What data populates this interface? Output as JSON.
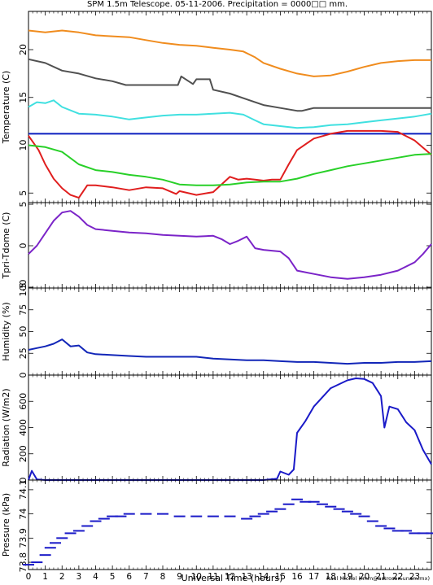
{
  "title": "SPM 1.5m Telescope. 05-11-2006. Precipitation = 0000□□ mm.",
  "xlabel": "Universal Time (hours)",
  "credit": "Raul Michel (rmm@astrosen.unam.mx)",
  "chart_data": [
    {
      "type": "line",
      "ylabel": "Temperature (C)",
      "ylim": [
        4,
        24
      ],
      "yticks": [
        5,
        10,
        15,
        20
      ],
      "xlim": [
        0,
        24
      ],
      "series": [
        {
          "color": "#f08c1e",
          "x": [
            0,
            1,
            2,
            3,
            4,
            5,
            6,
            7,
            8,
            9,
            10,
            11,
            12,
            12.8,
            13.5,
            14,
            15,
            16,
            17,
            18,
            19,
            20,
            21,
            22,
            23,
            24
          ],
          "values": [
            22,
            21.8,
            22,
            21.8,
            21.5,
            21.4,
            21.3,
            21,
            20.7,
            20.5,
            20.4,
            20.2,
            20,
            19.8,
            19.2,
            18.6,
            18,
            17.5,
            17.2,
            17.3,
            17.7,
            18.2,
            18.6,
            18.8,
            18.9,
            18.9
          ]
        },
        {
          "color": "#505050",
          "x": [
            0,
            1,
            2,
            3,
            4,
            5,
            5.8,
            6,
            7,
            8,
            8.9,
            9.1,
            9.8,
            10,
            10.8,
            11,
            12,
            13,
            14,
            15,
            16,
            16.3,
            17,
            18,
            19,
            20,
            21,
            22,
            23,
            24
          ],
          "values": [
            19,
            18.6,
            17.8,
            17.5,
            17,
            16.7,
            16.3,
            16.3,
            16.3,
            16.3,
            16.3,
            17.2,
            16.4,
            16.9,
            16.9,
            15.8,
            15.4,
            14.8,
            14.2,
            13.9,
            13.6,
            13.6,
            13.9,
            13.9,
            13.9,
            13.9,
            13.9,
            13.9,
            13.9,
            13.9
          ]
        },
        {
          "color": "#40e0e0",
          "x": [
            0,
            0.5,
            1,
            1.5,
            2,
            3,
            4,
            5,
            6,
            7,
            8,
            9,
            10,
            11,
            12,
            12.8,
            13.5,
            14,
            15,
            16,
            17,
            18,
            19,
            20,
            21,
            22,
            23,
            24
          ],
          "values": [
            14,
            14.5,
            14.4,
            14.7,
            14,
            13.3,
            13.2,
            13,
            12.7,
            12.9,
            13.1,
            13.2,
            13.2,
            13.3,
            13.4,
            13.2,
            12.6,
            12.2,
            12,
            11.8,
            11.9,
            12.1,
            12.2,
            12.4,
            12.6,
            12.8,
            13,
            13.3
          ]
        },
        {
          "color": "#0b1fbf",
          "x": [
            0,
            24
          ],
          "values": [
            11.2,
            11.2
          ]
        },
        {
          "color": "#e01e1e",
          "x": [
            0,
            0.6,
            1,
            1.5,
            2,
            2.5,
            3,
            3.5,
            4,
            5,
            6,
            7,
            8,
            8.8,
            9,
            10,
            11,
            12,
            12.5,
            13,
            13.5,
            14,
            14.5,
            15,
            15.5,
            16,
            17,
            18,
            19,
            20,
            21,
            22,
            23,
            24
          ],
          "values": [
            11,
            9.5,
            8,
            6.5,
            5.5,
            4.8,
            4.5,
            5.8,
            5.8,
            5.6,
            5.3,
            5.6,
            5.5,
            4.9,
            5.2,
            4.8,
            5.1,
            6.7,
            6.4,
            6.5,
            6.4,
            6.3,
            6.4,
            6.4,
            8,
            9.5,
            10.7,
            11.2,
            11.5,
            11.5,
            11.5,
            11.4,
            10.5,
            9
          ]
        },
        {
          "color": "#28d028",
          "x": [
            0,
            1,
            2,
            3,
            4,
            5,
            6,
            7,
            8,
            9,
            10,
            11,
            12,
            13,
            14,
            15,
            16,
            17,
            18,
            19,
            20,
            21,
            22,
            23,
            24
          ],
          "values": [
            10,
            9.8,
            9.3,
            8,
            7.4,
            7.2,
            6.9,
            6.7,
            6.4,
            5.9,
            5.8,
            5.8,
            5.9,
            6.1,
            6.2,
            6.2,
            6.5,
            7,
            7.4,
            7.8,
            8.1,
            8.4,
            8.7,
            9,
            9.1
          ]
        }
      ]
    },
    {
      "type": "line",
      "ylabel": "Tpri-Tdome (C)",
      "ylim": [
        -5.1,
        5.2
      ],
      "yticks": [
        -5,
        0,
        5
      ],
      "xlim": [
        0,
        24
      ],
      "series": [
        {
          "color": "#7b24c8",
          "x": [
            0,
            0.5,
            1,
            1.5,
            2,
            2.5,
            3,
            3.5,
            4,
            5,
            6,
            7,
            8,
            9,
            10,
            11,
            11.5,
            12,
            12.5,
            13,
            13.5,
            14,
            15,
            15.5,
            16,
            17,
            18,
            19,
            20,
            21,
            22,
            23,
            23.5,
            24
          ],
          "values": [
            -1,
            0,
            1.5,
            3,
            4,
            4.2,
            3.5,
            2.5,
            2,
            1.8,
            1.6,
            1.5,
            1.3,
            1.2,
            1.1,
            1.2,
            0.8,
            0.2,
            0.6,
            1.1,
            -0.3,
            -0.5,
            -0.7,
            -1.5,
            -3,
            -3.4,
            -3.8,
            -4,
            -3.8,
            -3.5,
            -3,
            -2,
            -1,
            0.2
          ]
        }
      ]
    },
    {
      "type": "line",
      "ylabel": "Humidity (%)",
      "ylim": [
        0,
        100
      ],
      "yticks": [
        0,
        25,
        50,
        75,
        100
      ],
      "xlim": [
        0,
        24
      ],
      "series": [
        {
          "color": "#1226b8",
          "x": [
            0,
            0.5,
            1,
            1.5,
            2,
            2.5,
            3,
            3.5,
            4,
            5,
            6,
            7,
            8,
            9,
            10,
            11,
            12,
            13,
            14,
            15,
            16,
            17,
            18,
            19,
            20,
            21,
            22,
            23,
            24
          ],
          "values": [
            29,
            31,
            33,
            36,
            41,
            33,
            34,
            26,
            24,
            23,
            22,
            21,
            21,
            21,
            21,
            19,
            18,
            17,
            17,
            16,
            15,
            15,
            14,
            13,
            14,
            14,
            15,
            15,
            16
          ]
        }
      ]
    },
    {
      "type": "line",
      "ylabel": "Radiation (W/m2)",
      "ylim": [
        0,
        800
      ],
      "yticks": [
        0,
        200,
        400,
        600
      ],
      "xlim": [
        0,
        24
      ],
      "series": [
        {
          "color": "#1a1ac8",
          "x": [
            0,
            0.2,
            0.5,
            1,
            2,
            3,
            4,
            5,
            6,
            7,
            8,
            9,
            10,
            11,
            12,
            13,
            14,
            14.8,
            15,
            15.5,
            15.8,
            16,
            16.5,
            17,
            18,
            19,
            19.5,
            20,
            20.5,
            21,
            21.2,
            21.5,
            22,
            22.5,
            23,
            23.5,
            24
          ],
          "values": [
            0,
            70,
            5,
            0,
            0,
            0,
            0,
            0,
            0,
            0,
            0,
            0,
            0,
            0,
            0,
            0,
            0,
            10,
            65,
            40,
            80,
            360,
            450,
            560,
            700,
            760,
            775,
            770,
            740,
            640,
            400,
            560,
            540,
            440,
            380,
            230,
            120
          ]
        }
      ]
    },
    {
      "type": "scatter",
      "ylabel": "Pressure (kPa)",
      "ylim": [
        73.77,
        74.14
      ],
      "yticks": [
        73.8,
        73.9,
        74,
        74.1
      ],
      "yticklabels": [
        "73.8",
        "73.9",
        "74",
        "74.1"
      ],
      "xlim": [
        0,
        24
      ],
      "series": [
        {
          "color": "#1a1ac8",
          "x": [
            0,
            0.5,
            1,
            1.3,
            1.6,
            2,
            2.5,
            3,
            3.5,
            4,
            4.5,
            5,
            5.5,
            6,
            7,
            8,
            9,
            10,
            11,
            12,
            13,
            13.5,
            14,
            14.5,
            15,
            15.5,
            16,
            16.5,
            17,
            17.5,
            18,
            18.5,
            19,
            19.5,
            20,
            20.5,
            21,
            21.5,
            22,
            22.5,
            23,
            23.5,
            24
          ],
          "values": [
            73.79,
            73.8,
            73.83,
            73.86,
            73.88,
            73.9,
            73.92,
            73.93,
            73.95,
            73.97,
            73.98,
            73.99,
            73.99,
            74.0,
            74.0,
            74.0,
            73.99,
            73.99,
            73.99,
            73.99,
            73.98,
            73.99,
            74.0,
            74.01,
            74.02,
            74.04,
            74.06,
            74.05,
            74.05,
            74.04,
            74.03,
            74.02,
            74.01,
            74.0,
            73.99,
            73.97,
            73.95,
            73.94,
            73.93,
            73.93,
            73.92,
            73.92,
            73.92
          ]
        }
      ]
    }
  ],
  "xticks": [
    0,
    1,
    2,
    3,
    4,
    5,
    6,
    7,
    8,
    9,
    10,
    11,
    12,
    13,
    14,
    15,
    16,
    17,
    18,
    19,
    20,
    21,
    22,
    23
  ]
}
